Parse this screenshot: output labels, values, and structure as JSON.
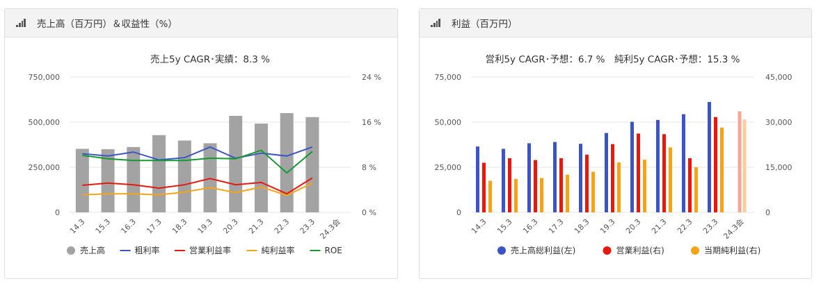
{
  "panels": [
    {
      "title": "売上高（百万円）＆収益性（%）"
    },
    {
      "title": "利益（百万円）"
    }
  ],
  "colors": {
    "gray": "#a3a3a3",
    "blue": "#3b55c8",
    "red": "#e8180c",
    "orange": "#f8a314",
    "green": "#139a2f",
    "grid": "#e6e6e6",
    "axis_text": "#555555",
    "forecast_pink": "#f5a898",
    "forecast_peach": "#fbcf9a"
  },
  "chart_data": [
    {
      "type": "bar+line",
      "title": "売上5y CAGR･実績：8.3 %",
      "categories": [
        "14.3",
        "15.3",
        "16.3",
        "17.3",
        "18.3",
        "19.3",
        "20.3",
        "21.3",
        "22.3",
        "23.3",
        "24.3会"
      ],
      "y_left": {
        "min": 0,
        "max": 750000,
        "ticks": [
          "0",
          "250,000",
          "500,000",
          "750,000"
        ]
      },
      "y_right": {
        "min": 0,
        "max": 24,
        "ticks": [
          "0 %",
          "8 %",
          "16 %",
          "24 %"
        ]
      },
      "grid": true,
      "legend_position": "bottom",
      "series": [
        {
          "name": "売上高",
          "kind": "bar",
          "axis": "left",
          "color": "#a3a3a3",
          "values": [
            352000,
            350000,
            362000,
            428000,
            398000,
            383000,
            535000,
            492000,
            550000,
            528000,
            null
          ]
        },
        {
          "name": "粗利率",
          "kind": "line",
          "axis": "right",
          "color": "#3b55c8",
          "values": [
            10.4,
            10.0,
            10.7,
            9.3,
            9.7,
            11.6,
            9.6,
            10.5,
            10.0,
            11.6,
            null
          ]
        },
        {
          "name": "営業利益率",
          "kind": "line",
          "axis": "right",
          "color": "#e8180c",
          "values": [
            4.8,
            5.2,
            4.9,
            4.3,
            4.9,
            6.0,
            4.9,
            5.3,
            3.3,
            6.1,
            null
          ]
        },
        {
          "name": "純利益率",
          "kind": "line",
          "axis": "right",
          "color": "#f8a314",
          "values": [
            3.1,
            3.3,
            3.3,
            3.1,
            3.6,
            4.4,
            3.5,
            4.5,
            3.0,
            5.2,
            null
          ]
        },
        {
          "name": "ROE",
          "kind": "line",
          "axis": "right",
          "color": "#139a2f",
          "values": [
            10.1,
            9.5,
            9.2,
            9.2,
            9.2,
            9.6,
            9.5,
            11.0,
            7.0,
            10.8,
            null
          ]
        }
      ]
    },
    {
      "type": "bar",
      "title": "営利5y CAGR･予想：6.7 %　純利5y CAGR･予想：15.3 %",
      "categories": [
        "14.3",
        "15.3",
        "16.3",
        "17.3",
        "18.3",
        "19.3",
        "20.3",
        "21.3",
        "22.3",
        "23.3",
        "24.3会"
      ],
      "y_left": {
        "min": 0,
        "max": 75000,
        "ticks": [
          "0",
          "25,000",
          "50,000",
          "75,000"
        ]
      },
      "y_right": {
        "min": 0,
        "max": 45000,
        "ticks": [
          "0",
          "15,000",
          "30,000",
          "45,000"
        ]
      },
      "grid": true,
      "legend_position": "bottom",
      "series": [
        {
          "name": "売上高総利益(左)",
          "axis": "left",
          "color": "#3b55c8",
          "values": [
            36500,
            35200,
            38300,
            39000,
            38000,
            44000,
            50200,
            51200,
            54400,
            61200,
            null
          ]
        },
        {
          "name": "営業利益(右)",
          "axis": "right",
          "color": "#e8180c",
          "values": [
            16500,
            18000,
            17400,
            18000,
            19200,
            22700,
            26200,
            26000,
            18000,
            31700,
            33600
          ]
        },
        {
          "name": "当期純利益(右)",
          "axis": "right",
          "color": "#f8a314",
          "values": [
            10500,
            11100,
            11400,
            12500,
            13500,
            16600,
            17500,
            21600,
            15000,
            28200,
            30900
          ]
        }
      ]
    }
  ]
}
